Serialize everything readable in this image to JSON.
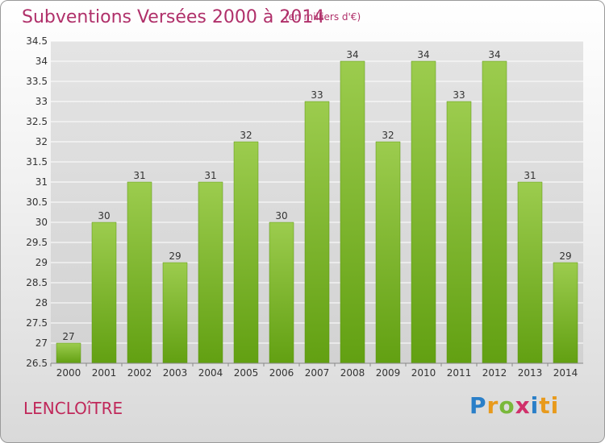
{
  "header": {
    "title": "Subventions Versées 2000 à 2014",
    "subtitle": "(en milliers d'€)"
  },
  "footer": {
    "place": "LENCLOîTRE",
    "brand_letters": [
      "P",
      "r",
      "o",
      "x",
      "i",
      "ti"
    ]
  },
  "colors": {
    "bar_top": "#9ccc4e",
    "bar_bottom": "#62a012",
    "bar_edge": "#5a9410",
    "title": "#b0306a",
    "grid": "#ffffff"
  },
  "chart_data": {
    "type": "bar",
    "title": "Subventions Versées 2000 à 2014",
    "subtitle": "(en milliers d'€)",
    "xlabel": "",
    "ylabel": "",
    "categories": [
      "2000",
      "2001",
      "2002",
      "2003",
      "2004",
      "2005",
      "2006",
      "2007",
      "2008",
      "2009",
      "2010",
      "2011",
      "2012",
      "2013",
      "2014"
    ],
    "values": [
      27,
      30,
      31,
      29,
      31,
      32,
      30,
      33,
      34,
      32,
      34,
      33,
      34,
      31,
      29
    ],
    "data_labels": [
      "27",
      "30",
      "31",
      "29",
      "31",
      "32",
      "30",
      "33",
      "34",
      "32",
      "34",
      "33",
      "34",
      "31",
      "29"
    ],
    "ylim": [
      26.5,
      34.5
    ],
    "yticks": [
      "26.5",
      "27",
      "27.5",
      "28",
      "28.5",
      "29",
      "29.5",
      "30",
      "30.5",
      "31",
      "31.5",
      "32",
      "32.5",
      "33",
      "33.5",
      "34",
      "34.5"
    ],
    "ytick_values": [
      26.5,
      27,
      27.5,
      28,
      28.5,
      29,
      29.5,
      30,
      30.5,
      31,
      31.5,
      32,
      32.5,
      33,
      33.5,
      34,
      34.5
    ],
    "grid": true,
    "legend": "none"
  }
}
